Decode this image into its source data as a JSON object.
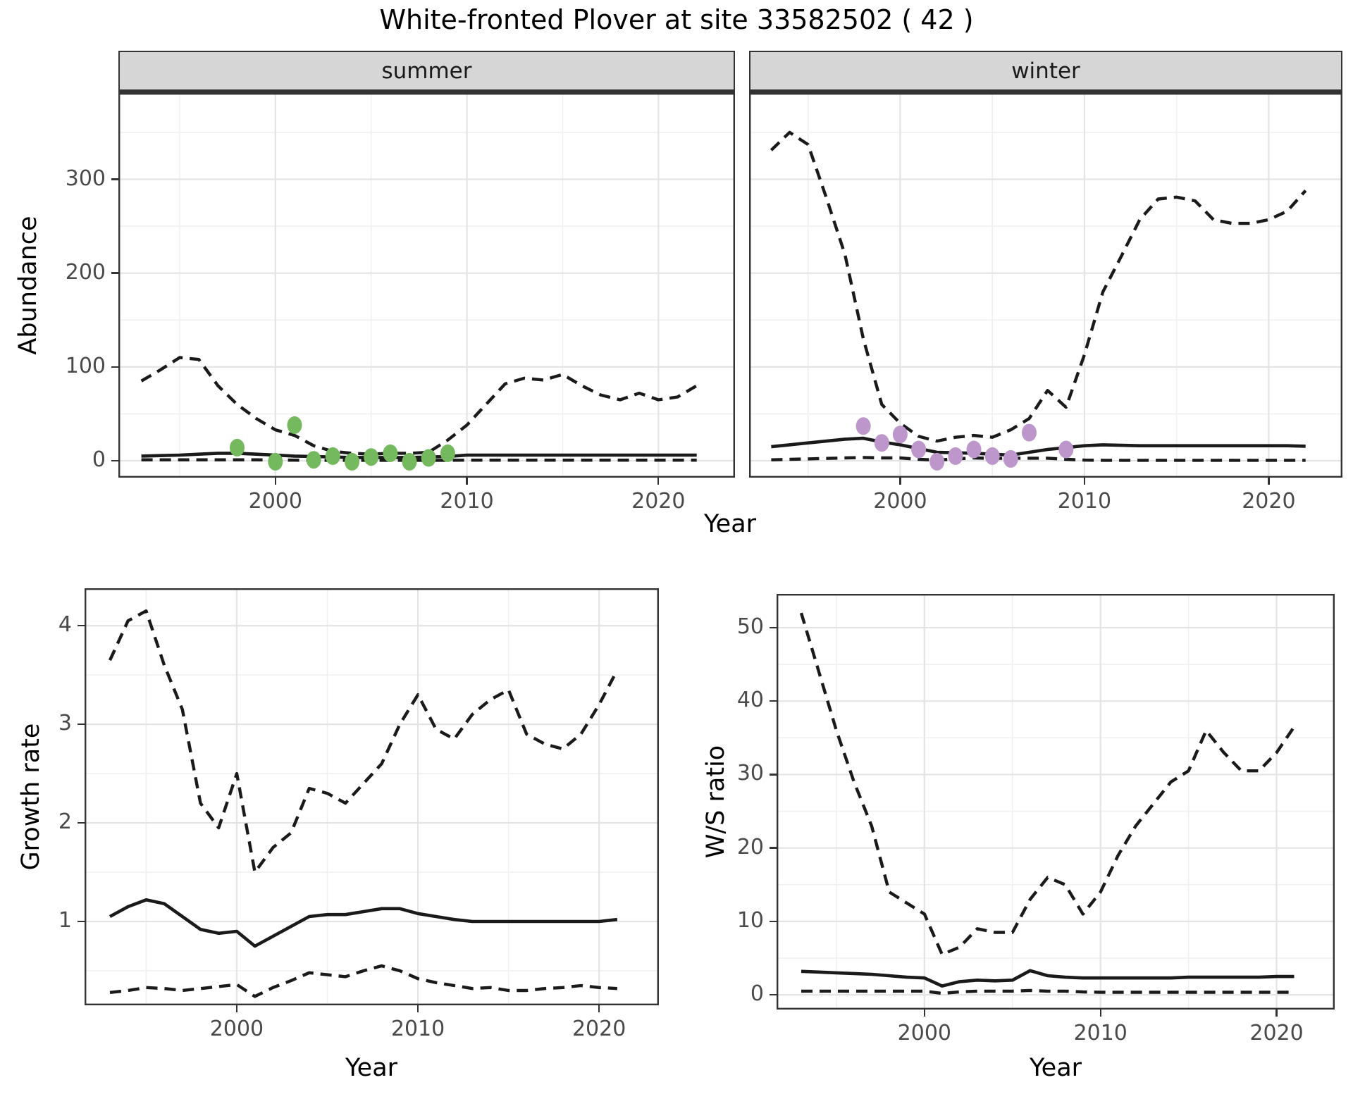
{
  "title": "White-fronted Plover at site 33582502 ( 42 )",
  "facets": [
    {
      "label": "summer"
    },
    {
      "label": "winter"
    }
  ],
  "axes": {
    "year_label": "Year",
    "abundance_label": "Abundance",
    "growth_label": "Growth rate",
    "ws_label": "W/S ratio"
  },
  "colors": {
    "summer_points": "#74b95e",
    "winter_points": "#bd97cb",
    "line": "#1a1a1a",
    "panel_border": "#333333",
    "grid_major": "#e4e4e4",
    "grid_minor": "#f0f0f0",
    "strip_fill": "#d6d6d6"
  },
  "chart_data": [
    {
      "id": "abundance-summer",
      "type": "line",
      "facet": "summer",
      "xlabel": "Year",
      "ylabel": "Abundance",
      "xlim": [
        1991.8,
        2024.0
      ],
      "ylim": [
        -18,
        392
      ],
      "xticks": [
        2000,
        2010,
        2020
      ],
      "xticks_minor": [
        1995,
        2005,
        2015
      ],
      "yticks": [
        0,
        100,
        200,
        300
      ],
      "yticks_minor": [
        50,
        150,
        250,
        350
      ],
      "show_y_labels": true,
      "grid": true,
      "legend": "none",
      "years": [
        1993,
        1994,
        1995,
        1996,
        1997,
        1998,
        1999,
        2000,
        2001,
        2002,
        2003,
        2004,
        2005,
        2006,
        2007,
        2008,
        2009,
        2010,
        2011,
        2012,
        2013,
        2014,
        2015,
        2016,
        2017,
        2018,
        2019,
        2020,
        2021,
        2022
      ],
      "series": [
        {
          "name": "upper-95ci",
          "style": "dashed",
          "values": [
            85,
            97,
            110,
            108,
            80,
            60,
            45,
            33,
            27,
            16,
            10,
            8,
            7,
            8,
            8,
            9,
            22,
            38,
            60,
            82,
            88,
            86,
            92,
            80,
            70,
            65,
            72,
            65,
            68,
            80
          ]
        },
        {
          "name": "median",
          "style": "solid",
          "values": [
            5,
            5.5,
            6,
            7,
            8,
            8,
            7,
            6,
            5,
            4.5,
            4,
            3.5,
            3.5,
            3.5,
            3.5,
            4,
            4.5,
            6,
            6,
            6,
            6,
            6,
            6,
            6,
            6,
            6,
            6,
            6,
            6,
            6
          ]
        },
        {
          "name": "lower-95ci",
          "style": "dashed",
          "values": [
            1,
            1,
            1,
            1,
            1,
            1,
            1,
            0.8,
            0.6,
            0.5,
            0.5,
            0.5,
            0.5,
            0.5,
            0.5,
            0.5,
            0.5,
            0.6,
            0.6,
            0.6,
            0.6,
            0.6,
            0.6,
            0.6,
            0.6,
            0.6,
            0.6,
            0.6,
            0.6,
            0.6
          ]
        }
      ],
      "points": {
        "name": "observed-summer-counts",
        "color": "#74b95e",
        "data": [
          [
            1998,
            14
          ],
          [
            2000,
            -1
          ],
          [
            2001,
            38
          ],
          [
            2002,
            1
          ],
          [
            2003,
            5
          ],
          [
            2004,
            -1
          ],
          [
            2005,
            4
          ],
          [
            2006,
            8
          ],
          [
            2007,
            -1
          ],
          [
            2008,
            3
          ],
          [
            2009,
            8
          ]
        ]
      }
    },
    {
      "id": "abundance-winter",
      "type": "line",
      "facet": "winter",
      "xlabel": "Year",
      "ylabel": "Abundance",
      "xlim": [
        1991.8,
        2024.0
      ],
      "ylim": [
        -18,
        392
      ],
      "xticks": [
        2000,
        2010,
        2020
      ],
      "xticks_minor": [
        1995,
        2005,
        2015
      ],
      "yticks": [
        0,
        100,
        200,
        300
      ],
      "yticks_minor": [
        50,
        150,
        250,
        350
      ],
      "show_y_labels": false,
      "grid": true,
      "legend": "none",
      "years": [
        1993,
        1994,
        1995,
        1996,
        1997,
        1998,
        1999,
        2000,
        2001,
        2002,
        2003,
        2004,
        2005,
        2006,
        2007,
        2008,
        2009,
        2010,
        2011,
        2012,
        2013,
        2014,
        2015,
        2016,
        2017,
        2018,
        2019,
        2020,
        2021,
        2022
      ],
      "series": [
        {
          "name": "upper-95ci",
          "style": "dashed",
          "values": [
            331,
            350,
            337,
            280,
            220,
            130,
            60,
            40,
            26,
            21,
            25,
            27,
            25,
            33,
            45,
            75,
            57,
            113,
            180,
            218,
            257,
            279,
            281,
            277,
            257,
            253,
            253,
            257,
            266,
            288
          ]
        },
        {
          "name": "median",
          "style": "solid",
          "values": [
            15,
            17,
            19,
            21,
            23,
            24,
            20,
            17,
            13,
            9,
            8.5,
            8,
            7,
            6,
            9,
            12,
            14,
            16,
            17,
            16.5,
            16,
            16,
            16,
            16,
            16,
            16,
            16,
            16,
            16,
            15.5
          ]
        },
        {
          "name": "lower-95ci",
          "style": "dashed",
          "values": [
            1,
            1.5,
            2,
            2.5,
            3,
            3.5,
            3,
            3,
            1.5,
            0.7,
            2,
            3,
            2.5,
            2.7,
            2.7,
            2.7,
            1.5,
            0.7,
            0.5,
            0.5,
            0.5,
            0.5,
            0.5,
            0.5,
            0.5,
            0.5,
            0.5,
            0.5,
            0.5,
            0.5
          ]
        }
      ],
      "points": {
        "name": "observed-winter-counts",
        "color": "#bd97cb",
        "data": [
          [
            1998,
            37
          ],
          [
            1999,
            19
          ],
          [
            2000,
            28
          ],
          [
            2001,
            12
          ],
          [
            2002,
            -1
          ],
          [
            2003,
            5
          ],
          [
            2004,
            12
          ],
          [
            2005,
            5
          ],
          [
            2006,
            2
          ],
          [
            2007,
            30
          ],
          [
            2009,
            12
          ]
        ]
      }
    },
    {
      "id": "growth-rate",
      "type": "line",
      "facet": "none",
      "xlabel": "Year",
      "ylabel": "Growth rate",
      "xlim": [
        1991.6,
        2023.3
      ],
      "ylim": [
        0.15,
        4.38
      ],
      "xticks": [
        2000,
        2010,
        2020
      ],
      "xticks_minor": [
        1995,
        2005,
        2015
      ],
      "yticks": [
        1,
        2,
        3,
        4
      ],
      "yticks_minor": [
        0.5,
        1.5,
        2.5,
        3.5
      ],
      "show_y_labels": true,
      "grid": true,
      "legend": "none",
      "years": [
        1993,
        1994,
        1995,
        1996,
        1997,
        1998,
        1999,
        2000,
        2001,
        2002,
        2003,
        2004,
        2005,
        2006,
        2007,
        2008,
        2009,
        2010,
        2011,
        2012,
        2013,
        2014,
        2015,
        2016,
        2017,
        2018,
        2019,
        2020,
        2021
      ],
      "series": [
        {
          "name": "upper-95ci",
          "style": "dashed",
          "values": [
            3.65,
            4.05,
            4.15,
            3.6,
            3.15,
            2.2,
            1.95,
            2.5,
            1.5,
            1.75,
            1.9,
            2.35,
            2.3,
            2.2,
            2.4,
            2.6,
            3.0,
            3.3,
            2.95,
            2.85,
            3.1,
            3.25,
            3.35,
            2.9,
            2.8,
            2.75,
            2.9,
            3.2,
            3.55
          ]
        },
        {
          "name": "median",
          "style": "solid",
          "values": [
            1.05,
            1.15,
            1.22,
            1.18,
            1.05,
            0.92,
            0.88,
            0.9,
            0.75,
            0.85,
            0.95,
            1.05,
            1.07,
            1.07,
            1.1,
            1.13,
            1.13,
            1.08,
            1.05,
            1.02,
            1.0,
            1.0,
            1.0,
            1.0,
            1.0,
            1.0,
            1.0,
            1.0,
            1.02
          ]
        },
        {
          "name": "lower-95ci",
          "style": "dashed",
          "values": [
            0.28,
            0.3,
            0.33,
            0.32,
            0.3,
            0.32,
            0.34,
            0.36,
            0.24,
            0.33,
            0.4,
            0.48,
            0.46,
            0.44,
            0.5,
            0.55,
            0.5,
            0.42,
            0.38,
            0.35,
            0.32,
            0.33,
            0.3,
            0.3,
            0.32,
            0.33,
            0.35,
            0.33,
            0.32
          ]
        }
      ],
      "points": null
    },
    {
      "id": "ws-ratio",
      "type": "line",
      "facet": "none",
      "xlabel": "Year",
      "ylabel": "W/S ratio",
      "xlim": [
        1991.6,
        2023.3
      ],
      "ylim": [
        -2,
        54.6
      ],
      "xticks": [
        2000,
        2010,
        2020
      ],
      "xticks_minor": [
        1995,
        2005,
        2015
      ],
      "yticks": [
        0,
        10,
        20,
        30,
        40,
        50
      ],
      "yticks_minor": [
        5,
        15,
        25,
        35,
        45
      ],
      "show_y_labels": true,
      "grid": true,
      "legend": "none",
      "years": [
        1993,
        1994,
        1995,
        1996,
        1997,
        1998,
        1999,
        2000,
        2001,
        2002,
        2003,
        2004,
        2005,
        2006,
        2007,
        2008,
        2009,
        2010,
        2011,
        2012,
        2013,
        2014,
        2015,
        2016,
        2017,
        2018,
        2019,
        2020,
        2021
      ],
      "series": [
        {
          "name": "upper-95ci",
          "style": "dashed",
          "values": [
            52,
            44,
            36,
            29,
            23,
            14,
            12.5,
            11,
            5.5,
            6.5,
            9,
            8.5,
            8.5,
            13,
            16,
            15,
            11,
            14,
            19,
            23,
            26,
            29,
            30.5,
            36,
            33,
            30.5,
            30.5,
            33,
            36.5
          ]
        },
        {
          "name": "median",
          "style": "solid",
          "values": [
            3.2,
            3.1,
            3.0,
            2.9,
            2.8,
            2.6,
            2.4,
            2.3,
            1.2,
            1.8,
            2.0,
            1.9,
            2.0,
            3.3,
            2.6,
            2.4,
            2.3,
            2.3,
            2.3,
            2.3,
            2.3,
            2.3,
            2.4,
            2.4,
            2.4,
            2.4,
            2.4,
            2.5,
            2.5
          ]
        },
        {
          "name": "lower-95ci",
          "style": "dashed",
          "values": [
            0.5,
            0.5,
            0.5,
            0.5,
            0.5,
            0.5,
            0.5,
            0.5,
            0.2,
            0.4,
            0.5,
            0.5,
            0.5,
            0.6,
            0.5,
            0.5,
            0.4,
            0.35,
            0.35,
            0.35,
            0.35,
            0.35,
            0.35,
            0.35,
            0.35,
            0.35,
            0.35,
            0.35,
            0.35
          ]
        }
      ],
      "points": null
    }
  ]
}
